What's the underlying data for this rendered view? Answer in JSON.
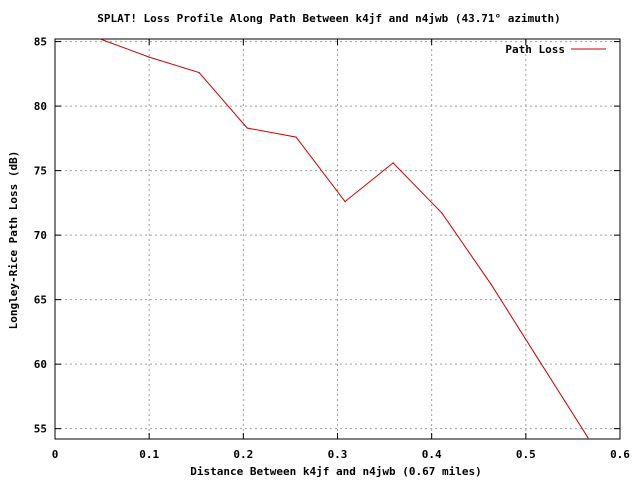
{
  "chart_data": {
    "type": "line",
    "title": "SPLAT! Loss Profile Along Path Between k4jf and n4jwb (43.71° azimuth)",
    "xlabel": "Distance Between k4jf and n4jwb (0.67 miles)",
    "ylabel": "Longley-Rice Path Loss (dB)",
    "xlim": [
      0,
      0.6
    ],
    "ylim": [
      54.2,
      85.2
    ],
    "x_ticks": [
      0,
      0.1,
      0.2,
      0.3,
      0.4,
      0.5,
      0.6
    ],
    "x_tick_labels": [
      "0",
      "0.1",
      "0.2",
      "0.3",
      "0.4",
      "0.5",
      "0.6"
    ],
    "y_ticks": [
      55,
      60,
      65,
      70,
      75,
      80,
      85
    ],
    "y_tick_labels": [
      "55",
      "60",
      "65",
      "70",
      "75",
      "80",
      "85"
    ],
    "grid": true,
    "legend_position": "top-right",
    "series": [
      {
        "name": "Path Loss",
        "color": "#cc0000",
        "x": [
          0.048,
          0.1,
          0.153,
          0.204,
          0.256,
          0.308,
          0.359,
          0.411,
          0.463,
          0.514,
          0.566
        ],
        "y": [
          85.2,
          83.8,
          82.6,
          78.3,
          77.6,
          72.6,
          75.6,
          71.7,
          66.2,
          60.3,
          54.3
        ]
      }
    ]
  }
}
